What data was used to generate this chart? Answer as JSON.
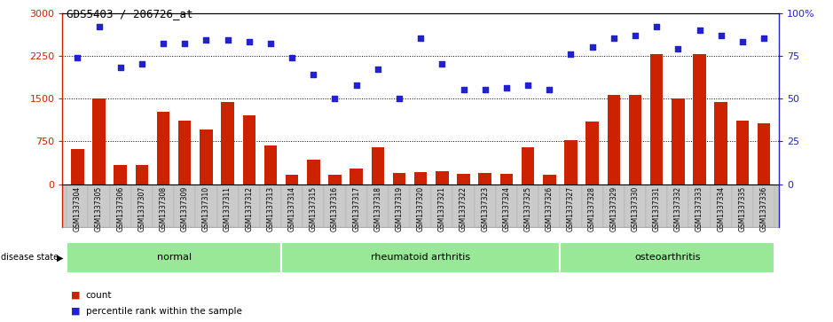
{
  "title": "GDS5403 / 206726_at",
  "samples": [
    "GSM1337304",
    "GSM1337305",
    "GSM1337306",
    "GSM1337307",
    "GSM1337308",
    "GSM1337309",
    "GSM1337310",
    "GSM1337311",
    "GSM1337312",
    "GSM1337313",
    "GSM1337314",
    "GSM1337315",
    "GSM1337316",
    "GSM1337317",
    "GSM1337318",
    "GSM1337319",
    "GSM1337320",
    "GSM1337321",
    "GSM1337322",
    "GSM1337323",
    "GSM1337324",
    "GSM1337325",
    "GSM1337326",
    "GSM1337327",
    "GSM1337328",
    "GSM1337329",
    "GSM1337330",
    "GSM1337331",
    "GSM1337332",
    "GSM1337333",
    "GSM1337334",
    "GSM1337335",
    "GSM1337336"
  ],
  "counts": [
    620,
    1500,
    330,
    340,
    1270,
    1120,
    950,
    1440,
    1200,
    680,
    165,
    430,
    165,
    270,
    640,
    190,
    210,
    220,
    175,
    195,
    175,
    640,
    170,
    770,
    1100,
    1570,
    1560,
    2280,
    1500,
    2280,
    1440,
    1110,
    1060
  ],
  "percentiles": [
    74,
    92,
    68,
    70,
    82,
    82,
    84,
    84,
    83,
    82,
    74,
    64,
    50,
    58,
    67,
    50,
    85,
    70,
    55,
    55,
    56,
    58,
    55,
    76,
    80,
    85,
    87,
    92,
    79,
    90,
    87,
    83,
    85
  ],
  "groups": [
    {
      "label": "normal",
      "start": 0,
      "end": 9
    },
    {
      "label": "rheumatoid arthritis",
      "start": 10,
      "end": 22
    },
    {
      "label": "osteoarthritis",
      "start": 23,
      "end": 32
    }
  ],
  "bar_color": "#CC2200",
  "dot_color": "#2222CC",
  "left_ylim": [
    0,
    3000
  ],
  "right_ylim": [
    0,
    100
  ],
  "left_yticks": [
    0,
    750,
    1500,
    2250,
    3000
  ],
  "right_yticks": [
    0,
    25,
    50,
    75,
    100
  ],
  "dotted_lines": [
    750,
    1500,
    2250
  ],
  "group_color": "#98E898",
  "tick_bg_color": "#C8C8C8",
  "fig_width": 9.39,
  "fig_height": 3.63
}
